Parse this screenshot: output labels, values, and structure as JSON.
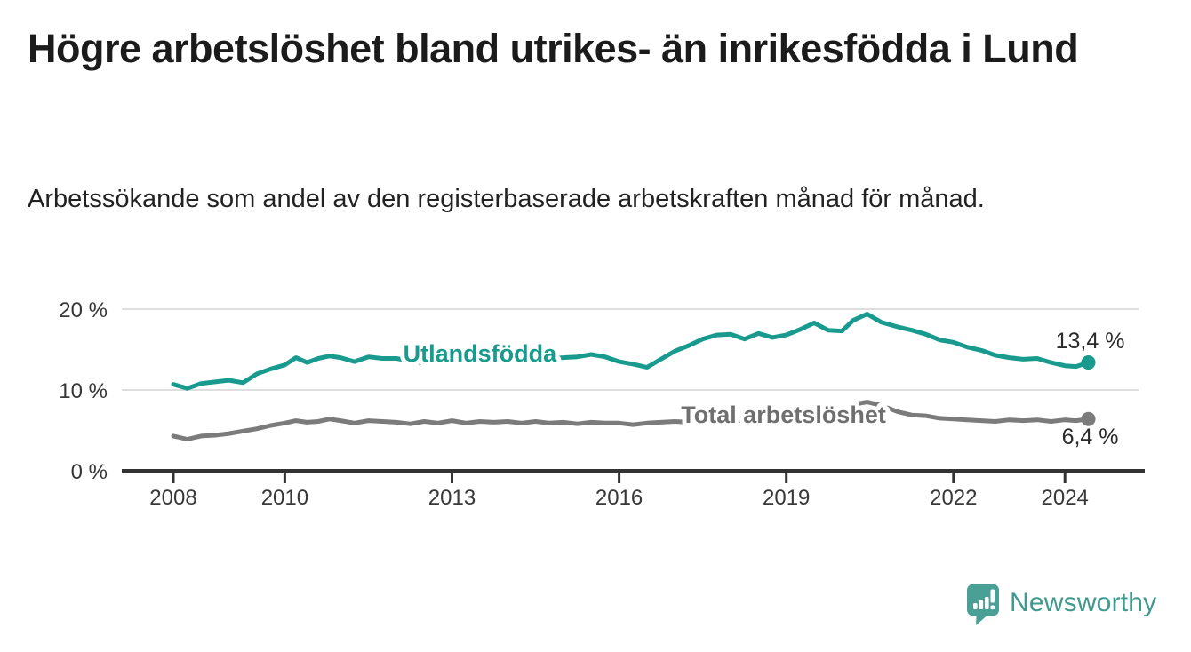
{
  "header": {
    "title": "Högre arbetslöshet bland utrikes- än inrikesfödda i Lund",
    "subtitle": "Arbetssökande som andel av den registerbaserade arbetskraften månad för månad."
  },
  "footer": {
    "brand": "Newsworthy",
    "logo_icon": "bar-chart-speech-bubble-with-exclamation",
    "brand_color": "#3f9a8e",
    "logo_bubble_color": "#4ba096"
  },
  "chart_data": {
    "type": "line",
    "title": "Högre arbetslöshet bland utrikes- än inrikesfödda i Lund",
    "subtitle": "Arbetssökande som andel av den registerbaserade arbetskraften månad för månad.",
    "xlabel": "",
    "ylabel": "",
    "ylim": [
      0,
      21
    ],
    "xlim": [
      2007.1,
      2025.3
    ],
    "grid": "horizontal",
    "legend_position": "inline-on-line",
    "background": "#ffffff",
    "gridline_color": "#dedede",
    "axis_color": "#333333",
    "tick_label_color": "#383838",
    "yticks": [
      {
        "value": 0,
        "label": "0 %"
      },
      {
        "value": 10,
        "label": "10 %"
      },
      {
        "value": 20,
        "label": "20 %"
      }
    ],
    "xticks": [
      {
        "value": 2008,
        "label": "2008"
      },
      {
        "value": 2010,
        "label": "2010"
      },
      {
        "value": 2013,
        "label": "2013"
      },
      {
        "value": 2016,
        "label": "2016"
      },
      {
        "value": 2019,
        "label": "2019"
      },
      {
        "value": 2022,
        "label": "2022"
      },
      {
        "value": 2024,
        "label": "2024"
      }
    ],
    "x": [
      2008.0,
      2008.25,
      2008.5,
      2008.75,
      2009.0,
      2009.25,
      2009.5,
      2009.75,
      2010.0,
      2010.2,
      2010.4,
      2010.6,
      2010.8,
      2011.0,
      2011.25,
      2011.5,
      2011.75,
      2012.0,
      2012.25,
      2012.5,
      2012.75,
      2013.0,
      2013.25,
      2013.5,
      2013.75,
      2014.0,
      2014.25,
      2014.5,
      2014.75,
      2015.0,
      2015.25,
      2015.5,
      2015.75,
      2016.0,
      2016.25,
      2016.5,
      2016.75,
      2017.0,
      2017.25,
      2017.5,
      2017.75,
      2018.0,
      2018.25,
      2018.5,
      2018.75,
      2019.0,
      2019.25,
      2019.5,
      2019.75,
      2020.0,
      2020.2,
      2020.45,
      2020.7,
      2021.0,
      2021.25,
      2021.5,
      2021.75,
      2022.0,
      2022.25,
      2022.5,
      2022.75,
      2023.0,
      2023.25,
      2023.5,
      2023.75,
      2024.0,
      2024.2,
      2024.42
    ],
    "series": [
      {
        "name": "Utlandsfödda",
        "color": "#189b8e",
        "label_color": "#189b8e",
        "line_label_anchor": {
          "x": 2013.5,
          "y": 14.5
        },
        "end_dot": true,
        "end_value": 13.4,
        "end_label": "13,4 %",
        "end_label_position": "above",
        "values": [
          10.7,
          10.2,
          10.8,
          11.0,
          11.2,
          10.9,
          12.0,
          12.6,
          13.1,
          14.0,
          13.4,
          13.9,
          14.2,
          14.0,
          13.5,
          14.1,
          13.9,
          13.9,
          13.6,
          13.3,
          13.8,
          13.7,
          13.5,
          14.0,
          13.8,
          13.9,
          13.7,
          13.8,
          13.9,
          14.0,
          14.1,
          14.4,
          14.1,
          13.5,
          13.2,
          12.8,
          13.8,
          14.8,
          15.5,
          16.3,
          16.8,
          16.9,
          16.3,
          17.0,
          16.5,
          16.8,
          17.5,
          18.3,
          17.4,
          17.3,
          18.6,
          19.4,
          18.4,
          17.8,
          17.4,
          16.9,
          16.2,
          15.9,
          15.3,
          14.9,
          14.3,
          14.0,
          13.8,
          13.9,
          13.4,
          13.0,
          12.9,
          13.4
        ]
      },
      {
        "name": "Total arbetslöshet",
        "color": "#7b7b7b",
        "label_color": "#6f6f6f",
        "line_label_anchor": {
          "x": 2018.95,
          "y": 6.9
        },
        "end_dot": true,
        "end_value": 6.4,
        "end_label": "6,4 %",
        "end_label_position": "below",
        "values": [
          4.3,
          3.9,
          4.3,
          4.4,
          4.6,
          4.9,
          5.2,
          5.6,
          5.9,
          6.2,
          6.0,
          6.1,
          6.4,
          6.2,
          5.9,
          6.2,
          6.1,
          6.0,
          5.8,
          6.1,
          5.9,
          6.2,
          5.9,
          6.1,
          6.0,
          6.1,
          5.9,
          6.1,
          5.9,
          6.0,
          5.8,
          6.0,
          5.9,
          5.9,
          5.7,
          5.9,
          6.0,
          6.1,
          6.0,
          6.2,
          6.2,
          6.3,
          6.2,
          6.3,
          6.4,
          6.5,
          6.6,
          6.8,
          6.9,
          7.2,
          8.2,
          8.5,
          8.1,
          7.3,
          6.9,
          6.8,
          6.5,
          6.4,
          6.3,
          6.2,
          6.1,
          6.3,
          6.2,
          6.3,
          6.1,
          6.3,
          6.2,
          6.4
        ]
      }
    ]
  }
}
